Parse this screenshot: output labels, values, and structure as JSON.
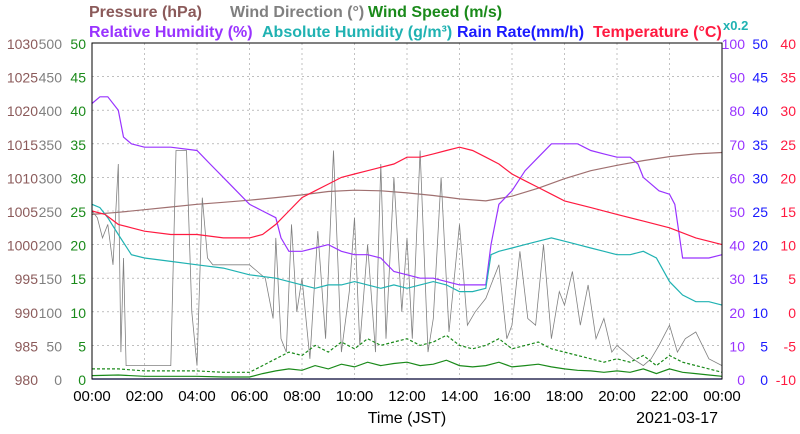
{
  "chart_data": {
    "type": "line",
    "legend": {
      "row1": [
        {
          "key": "pressure",
          "label": "Pressure (hPa)",
          "color": "#8b5a5a"
        },
        {
          "key": "wind_dir",
          "label": "Wind Direction (°)",
          "color": "#808080"
        },
        {
          "key": "wind_speed",
          "label": "Wind Speed (m/s)",
          "color": "#1a8a1a"
        }
      ],
      "row2": [
        {
          "key": "rh",
          "label": "Relative Humidity (%)",
          "color": "#9933ff"
        },
        {
          "key": "ah",
          "label": "Absolute Humidity (g/m³)",
          "color": "#20b2b2"
        },
        {
          "key": "rain",
          "label": "Rain Rate(mm/h)",
          "color": "#1a1aff"
        },
        {
          "key": "temp",
          "label": "Temperature (°C)",
          "color": "#ff1a40"
        }
      ],
      "ah_scale": "x0.2"
    },
    "xlabel": "Time (JST)",
    "date": "2021-03-17",
    "x_ticks": [
      "00:00",
      "02:00",
      "04:00",
      "06:00",
      "08:00",
      "10:00",
      "12:00",
      "14:00",
      "16:00",
      "18:00",
      "20:00",
      "22:00",
      "00:00"
    ],
    "axes": {
      "pressure": {
        "ticks": [
          "1030",
          "1025",
          "1020",
          "1015",
          "1010",
          "1005",
          "1000",
          "995",
          "990",
          "985",
          "980"
        ],
        "range": [
          980,
          1030
        ],
        "color": "#8b5a5a"
      },
      "wind_dir": {
        "ticks": [
          "500",
          "450",
          "400",
          "350",
          "300",
          "250",
          "200",
          "150",
          "100",
          "50",
          "0"
        ],
        "range": [
          0,
          500
        ],
        "color": "#808080"
      },
      "wind_speed": {
        "ticks": [
          "50",
          "45",
          "40",
          "35",
          "30",
          "25",
          "20",
          "15",
          "10",
          "5",
          "0"
        ],
        "range": [
          0,
          50
        ],
        "color": "#1a8a1a"
      },
      "rh": {
        "ticks": [
          "100",
          "90",
          "80",
          "70",
          "60",
          "50",
          "40",
          "30",
          "20",
          "10",
          "0"
        ],
        "range": [
          0,
          100
        ],
        "color": "#9933ff"
      },
      "rain": {
        "ticks": [
          "50",
          "45",
          "40",
          "35",
          "30",
          "25",
          "20",
          "15",
          "10",
          "5",
          "0"
        ],
        "range": [
          0,
          50
        ],
        "color": "#1a1aff"
      },
      "temp": {
        "ticks": [
          "40",
          "35",
          "30",
          "25",
          "20",
          "15",
          "10",
          "5",
          "0",
          "-5",
          "-10"
        ],
        "range": [
          -10,
          40
        ],
        "color": "#ff1a40"
      }
    },
    "series": [
      {
        "key": "pressure",
        "axis": "pressure",
        "color": "#a07070",
        "x": [
          0,
          1,
          2,
          3,
          4,
          5,
          6,
          7,
          8,
          9,
          10,
          11,
          12,
          13,
          14,
          15,
          16,
          17,
          18,
          19,
          20,
          21,
          22,
          23,
          24
        ],
        "values": [
          1004.5,
          1004.8,
          1005.2,
          1005.6,
          1006.0,
          1006.3,
          1006.6,
          1007.0,
          1007.4,
          1007.9,
          1008.1,
          1008.0,
          1007.7,
          1007.3,
          1006.8,
          1006.5,
          1007.2,
          1008.4,
          1009.8,
          1011.0,
          1011.8,
          1012.5,
          1013.1,
          1013.5,
          1013.7
        ]
      },
      {
        "key": "wind_dir",
        "axis": "wind_dir",
        "color": "#808080",
        "x": [
          0,
          0.2,
          0.4,
          0.6,
          0.8,
          1.0,
          1.1,
          1.2,
          1.3,
          1.5,
          2.0,
          2.6,
          3.0,
          3.2,
          3.6,
          3.8,
          4.0,
          4.2,
          4.4,
          4.6,
          5.0,
          5.6,
          6.0,
          6.3,
          6.6,
          6.9,
          7.0,
          7.2,
          7.4,
          7.6,
          7.8,
          8.0,
          8.3,
          8.6,
          8.9,
          9.2,
          9.5,
          9.8,
          10.0,
          10.2,
          10.5,
          10.8,
          11.0,
          11.2,
          11.5,
          11.8,
          12.0,
          12.2,
          12.5,
          12.8,
          13.0,
          13.3,
          13.6,
          14.0,
          14.3,
          14.6,
          15.0,
          15.2,
          15.5,
          15.8,
          16.0,
          16.3,
          16.6,
          16.9,
          17.2,
          17.5,
          17.8,
          18.0,
          18.3,
          18.6,
          18.9,
          19.2,
          19.5,
          19.8,
          20.0,
          20.3,
          20.6,
          21.0,
          21.3,
          21.6,
          22.0,
          22.3,
          22.6,
          23.0,
          23.5,
          24.0
        ],
        "values": [
          250,
          240,
          210,
          230,
          170,
          320,
          40,
          180,
          20,
          20,
          20,
          20,
          20,
          340,
          340,
          100,
          20,
          270,
          180,
          170,
          170,
          170,
          170,
          160,
          150,
          90,
          210,
          60,
          40,
          230,
          100,
          150,
          30,
          220,
          60,
          340,
          40,
          130,
          240,
          50,
          200,
          40,
          320,
          60,
          300,
          100,
          210,
          60,
          340,
          40,
          90,
          300,
          70,
          230,
          80,
          100,
          120,
          140,
          170,
          60,
          80,
          190,
          90,
          80,
          200,
          60,
          130,
          110,
          160,
          80,
          140,
          60,
          90,
          40,
          50,
          40,
          30,
          20,
          30,
          50,
          80,
          40,
          60,
          70,
          30,
          20
        ]
      },
      {
        "key": "wind_speed_max",
        "axis": "wind_speed",
        "color": "#1a8a1a",
        "dash": true,
        "x": [
          0,
          1,
          2,
          3,
          4,
          5,
          6,
          6.5,
          7,
          7.5,
          8,
          8.5,
          9,
          9.5,
          10,
          10.5,
          11,
          11.5,
          12,
          12.5,
          13,
          13.5,
          14,
          14.5,
          15,
          15.5,
          16,
          16.5,
          17,
          17.5,
          18,
          18.5,
          19,
          19.5,
          20,
          20.5,
          21,
          21.5,
          22,
          22.5,
          23,
          23.5,
          24
        ],
        "values": [
          1.5,
          1.5,
          1.2,
          1.2,
          1.2,
          1.0,
          1.0,
          2.0,
          3.0,
          4.0,
          3.5,
          5.0,
          4.0,
          5.5,
          4.5,
          6.0,
          5.0,
          5.5,
          6.0,
          5.0,
          5.5,
          6.5,
          5.0,
          4.5,
          5.0,
          6.0,
          4.5,
          5.0,
          5.5,
          4.5,
          4.0,
          3.5,
          3.0,
          2.5,
          3.0,
          2.5,
          3.5,
          2.0,
          3.5,
          2.5,
          2.0,
          1.5,
          1.0
        ]
      },
      {
        "key": "wind_speed",
        "axis": "wind_speed",
        "color": "#1a8a1a",
        "x": [
          0,
          1,
          2,
          3,
          4,
          5,
          6,
          6.5,
          7,
          7.5,
          8,
          8.5,
          9,
          9.5,
          10,
          10.5,
          11,
          11.5,
          12,
          12.5,
          13,
          13.5,
          14,
          14.5,
          15,
          15.5,
          16,
          16.5,
          17,
          17.5,
          18,
          18.5,
          19,
          19.5,
          20,
          20.5,
          21,
          21.5,
          22,
          22.5,
          23,
          23.5,
          24
        ],
        "values": [
          0.5,
          0.6,
          0.4,
          0.4,
          0.4,
          0.3,
          0.3,
          0.8,
          1.2,
          1.5,
          1.3,
          2.0,
          1.5,
          2.2,
          1.8,
          2.5,
          2.0,
          2.3,
          2.5,
          2.0,
          2.2,
          2.8,
          2.0,
          1.8,
          2.0,
          2.5,
          1.8,
          2.0,
          2.2,
          1.8,
          1.5,
          1.3,
          1.2,
          1.0,
          1.2,
          1.0,
          1.5,
          0.8,
          1.5,
          1.0,
          0.8,
          0.6,
          0.4
        ]
      },
      {
        "key": "rh",
        "axis": "rh",
        "color": "#9933ff",
        "x": [
          0,
          0.3,
          0.6,
          1.0,
          1.2,
          1.5,
          2.0,
          3.0,
          4.0,
          4.5,
          5.0,
          5.5,
          6.0,
          6.5,
          7.0,
          7.2,
          7.5,
          8.0,
          8.5,
          9.0,
          9.5,
          10.0,
          10.5,
          11.0,
          11.5,
          12.0,
          12.5,
          13.0,
          13.5,
          14.0,
          14.5,
          15.0,
          15.2,
          15.5,
          16.0,
          16.5,
          17.0,
          17.5,
          18.0,
          18.5,
          19.0,
          19.5,
          20.0,
          20.5,
          20.8,
          21.0,
          21.3,
          21.6,
          22.0,
          22.2,
          22.5,
          23.0,
          23.5,
          24.0
        ],
        "values": [
          82,
          84,
          84,
          80,
          72,
          70,
          69,
          69,
          68,
          64,
          60,
          56,
          52,
          50,
          48,
          42,
          38,
          38,
          39,
          40,
          38,
          37,
          37,
          36,
          32,
          31,
          30,
          30,
          29,
          28,
          28,
          28,
          40,
          52,
          56,
          62,
          66,
          70,
          70,
          70,
          68,
          67,
          66,
          66,
          64,
          60,
          58,
          56,
          55,
          52,
          36,
          36,
          36,
          37
        ]
      },
      {
        "key": "ah",
        "axis": "rh",
        "color": "#20b2b2",
        "scale": "x0.2",
        "x": [
          0,
          0.3,
          0.6,
          1.0,
          1.5,
          2.0,
          3.0,
          4.0,
          5.0,
          6.0,
          7.0,
          8.0,
          8.5,
          9.0,
          9.5,
          10.0,
          10.5,
          11.0,
          11.5,
          12.0,
          12.5,
          13.0,
          13.5,
          14.0,
          14.5,
          15.0,
          15.2,
          15.5,
          16.0,
          16.5,
          17.0,
          17.5,
          18.0,
          18.5,
          19.0,
          19.5,
          20.0,
          20.5,
          21.0,
          21.5,
          22.0,
          22.5,
          23.0,
          23.5,
          24.0
        ],
        "values": [
          52,
          51,
          48,
          43,
          37,
          36,
          35,
          34,
          33,
          31,
          30,
          28,
          27,
          28,
          28,
          29,
          28,
          27,
          28,
          27,
          28,
          29,
          28,
          26,
          26,
          27,
          37,
          38,
          39,
          40,
          41,
          42,
          41,
          40,
          39,
          38,
          37,
          37,
          38,
          36,
          29,
          25,
          23,
          23,
          22
        ]
      },
      {
        "key": "rain",
        "axis": "rain",
        "color": "#1a1aff",
        "x": [
          0,
          24
        ],
        "values": [
          0,
          0
        ]
      },
      {
        "key": "temp",
        "axis": "temp",
        "color": "#ff1a40",
        "x": [
          0,
          0.5,
          1.0,
          1.5,
          2.0,
          3.0,
          4.0,
          5.0,
          6.0,
          6.5,
          7.0,
          7.5,
          8.0,
          8.5,
          9.0,
          9.5,
          10.0,
          10.5,
          11.0,
          11.5,
          12.0,
          12.5,
          13.0,
          13.5,
          14.0,
          14.5,
          15.0,
          15.5,
          16.0,
          16.5,
          17.0,
          17.5,
          18.0,
          19.0,
          20.0,
          21.0,
          22.0,
          23.0,
          24.0
        ],
        "values": [
          15,
          14.5,
          13,
          12.5,
          12,
          11.5,
          11.5,
          11,
          11,
          11.5,
          13,
          15,
          17,
          18,
          19,
          20,
          20.5,
          21,
          21.5,
          22,
          23,
          23,
          23.5,
          24,
          24.5,
          24,
          23,
          22,
          20.5,
          19.5,
          18.5,
          17.5,
          16.5,
          15.5,
          14.5,
          13.5,
          12.5,
          11,
          10
        ]
      }
    ],
    "grid": true
  }
}
